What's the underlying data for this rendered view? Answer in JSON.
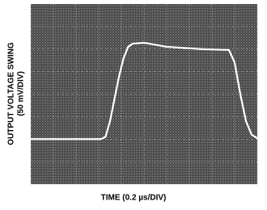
{
  "chart_data": {
    "type": "line",
    "x_label": "TIME (0.2 µs/DIV)",
    "y_label": "OUTPUT VOLTAGE SWING",
    "y_label_sub": "(50 mV/DIV)",
    "x": [
      0,
      0.62,
      0.66,
      0.7,
      0.74,
      0.78,
      0.82,
      0.86,
      0.9,
      1.0,
      1.2,
      1.5,
      1.75,
      1.8,
      1.85,
      1.9,
      1.95,
      2.0
    ],
    "series": [
      {
        "color": "#ffffff",
        "values": [
          100,
          100,
          105,
          140,
          190,
          240,
          280,
          305,
          312,
          314,
          305,
          300,
          298,
          270,
          200,
          140,
          110,
          102
        ]
      }
    ],
    "xlim": [
      0,
      2
    ],
    "ylim": [
      0,
      400
    ],
    "xticks": [
      0,
      0.2,
      0.4,
      0.6,
      0.8,
      1.0,
      1.2,
      1.4,
      1.6,
      1.8,
      2.0
    ],
    "yticks": [
      0,
      50,
      100,
      150,
      200,
      250,
      300,
      350,
      400
    ],
    "grid": true
  }
}
